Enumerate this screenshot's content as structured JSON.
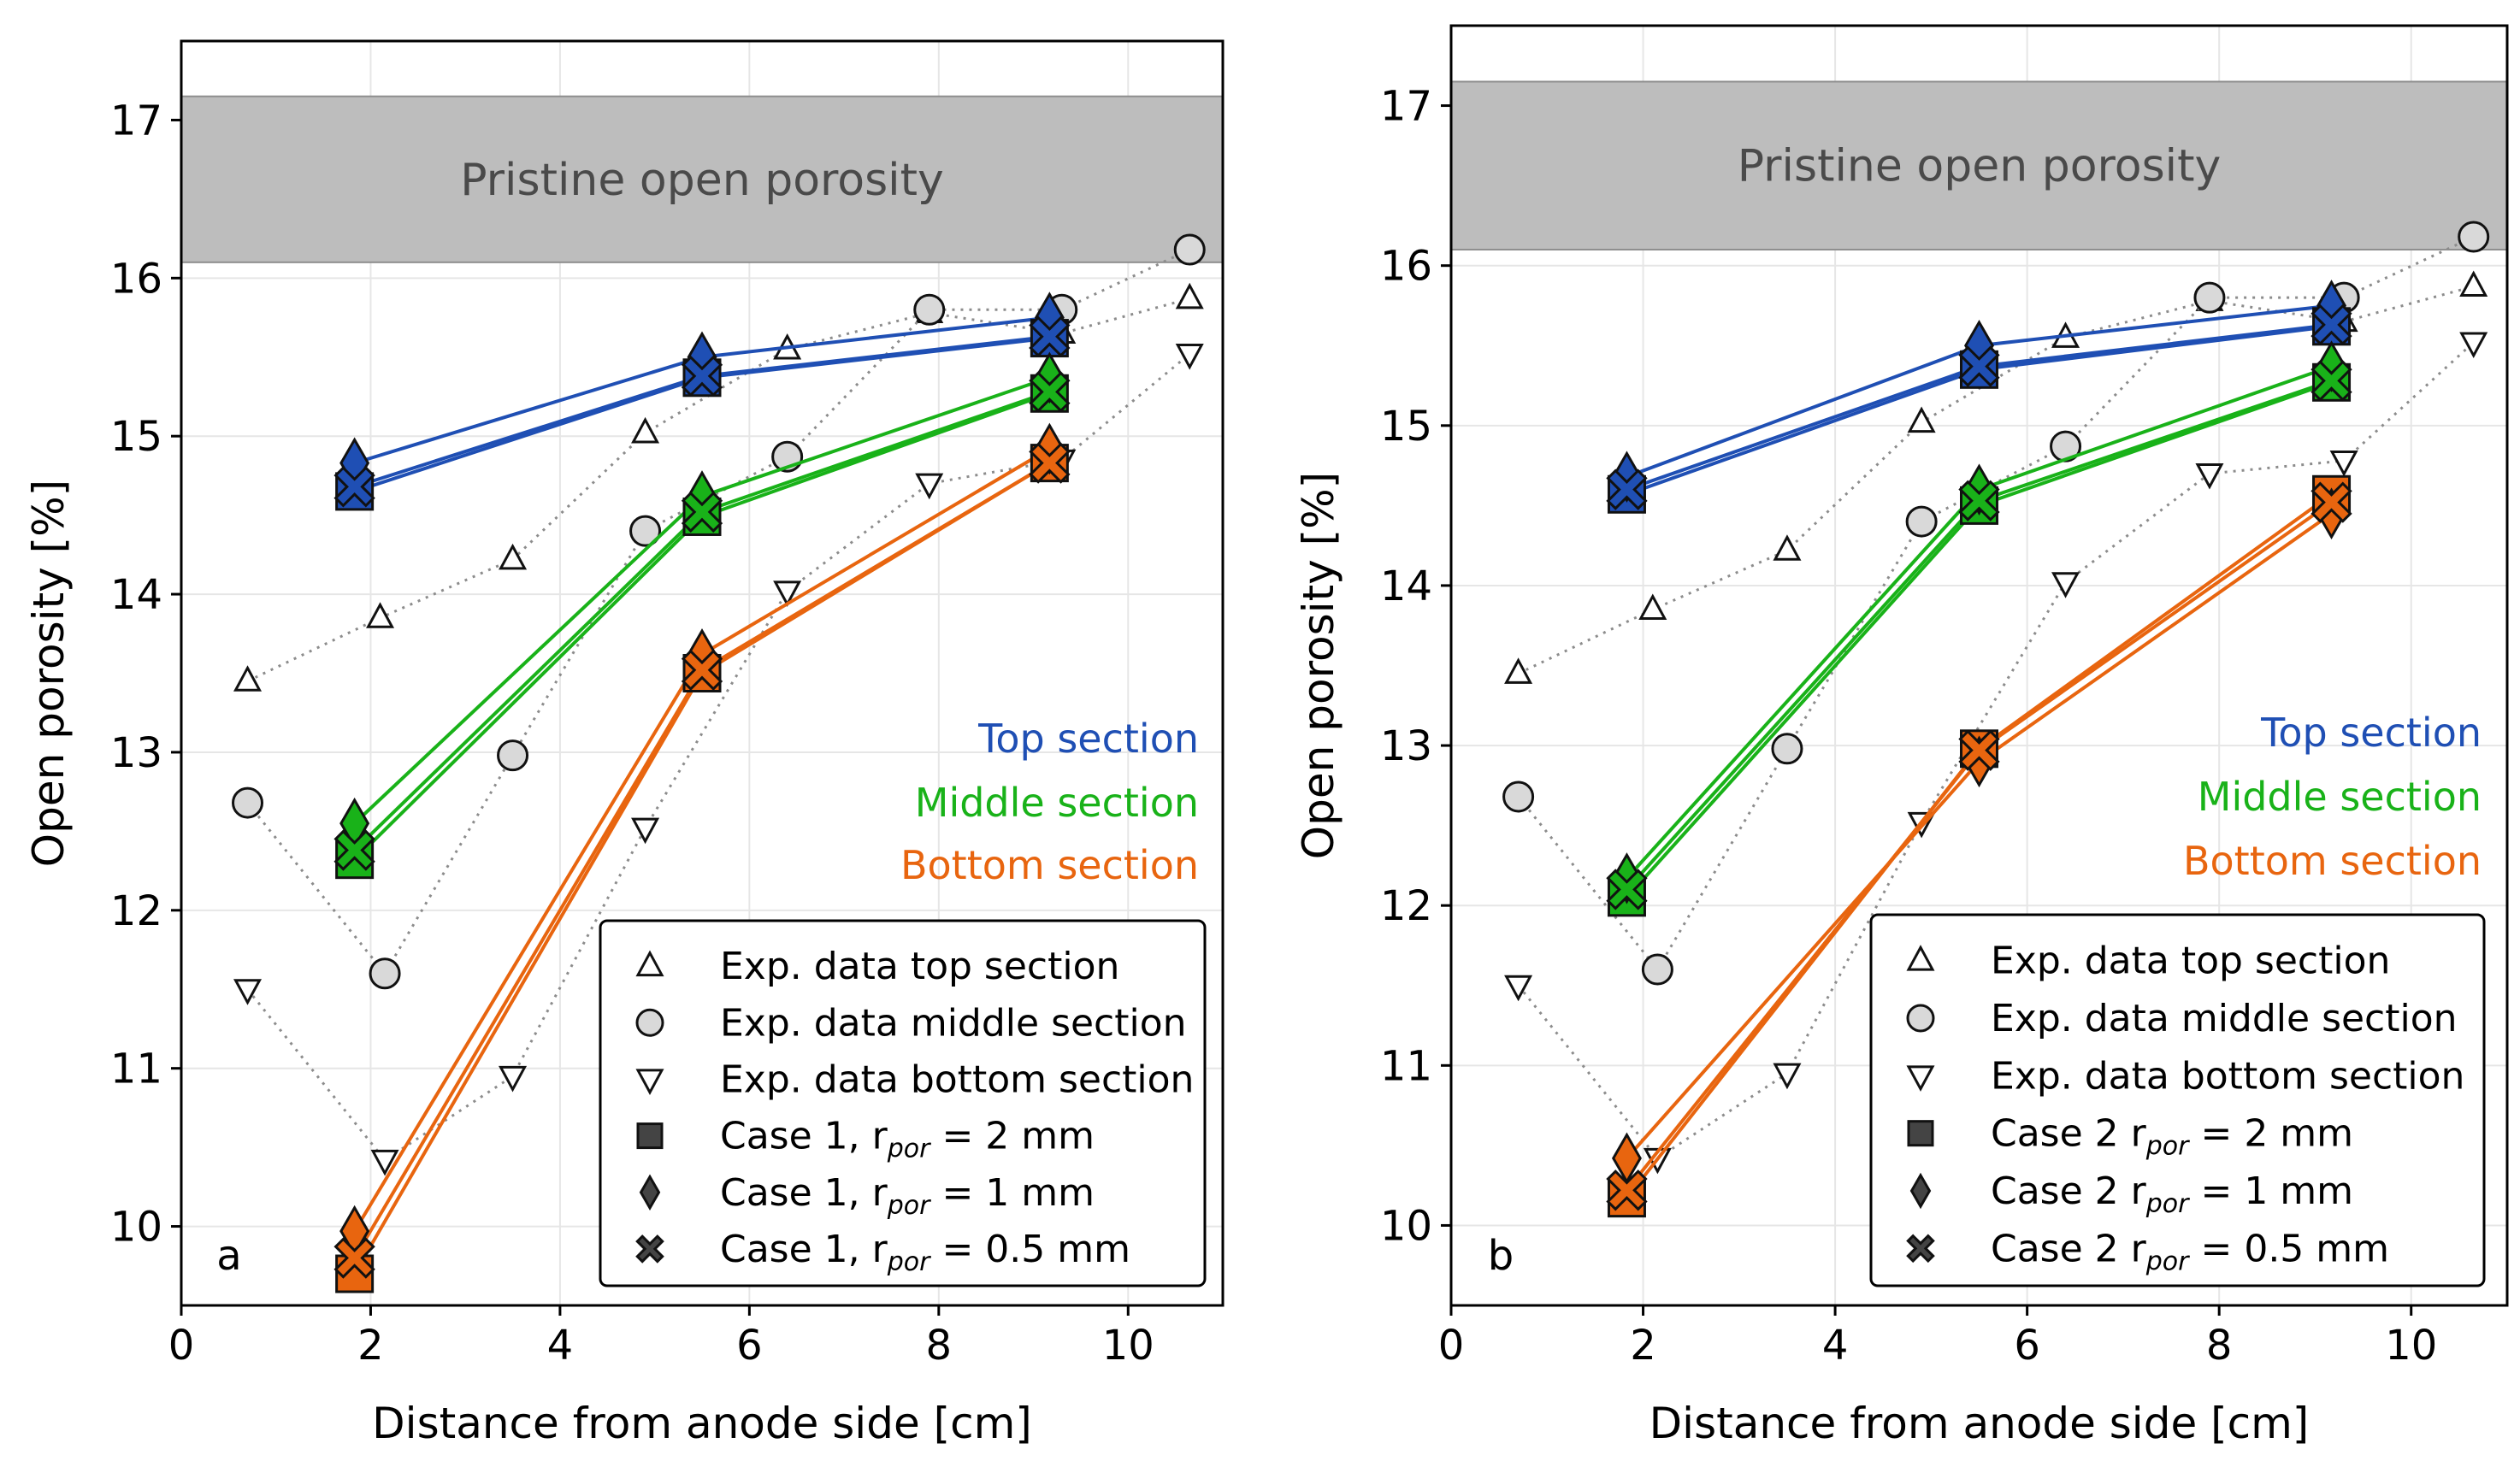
{
  "figure": {
    "ylabel": "Open porosity [%]",
    "xlabel": "Distance from anode side [cm]",
    "band_label": "Pristine open porosity",
    "section_labels": [
      "Top section",
      "Middle section",
      "Bottom section"
    ]
  },
  "colors": {
    "top": "#1f4fb4",
    "middle": "#19b219",
    "bottom": "#e8650f",
    "exp_fill": "#d9d9d9",
    "band": "#bdbdbd",
    "grid": "#e6e6e6"
  },
  "chart_data": [
    {
      "type": "line",
      "panel": "a",
      "xlabel": "Distance from anode side [cm]",
      "ylabel": "Open porosity [%]",
      "xlim": [
        0,
        11
      ],
      "ylim": [
        9.5,
        17.5
      ],
      "xticks": [
        "0",
        "2",
        "4",
        "6",
        "8",
        "10"
      ],
      "yticks": [
        "10",
        "11",
        "12",
        "13",
        "14",
        "15",
        "16",
        "17"
      ],
      "grid": true,
      "band": {
        "label": "Pristine open porosity",
        "y_range": [
          16.1,
          17.15
        ]
      },
      "section_labels": [
        "Top section",
        "Middle section",
        "Bottom section"
      ],
      "legend_position": "lower-right",
      "legend": [
        {
          "symbol": "triangle-up",
          "label": "Exp. data top section"
        },
        {
          "symbol": "circle",
          "label": "Exp. data middle section"
        },
        {
          "symbol": "triangle-down",
          "label": "Exp. data bottom section"
        },
        {
          "symbol": "square",
          "label": "Case 1, r",
          "sub": "por",
          "suffix": " = 2 mm"
        },
        {
          "symbol": "diamond",
          "label": "Case 1, r",
          "sub": "por",
          "suffix": " = 1 mm"
        },
        {
          "symbol": "x",
          "label": "Case 1, r",
          "sub": "por",
          "suffix": " = 0.5 mm"
        }
      ],
      "experimental": [
        {
          "name": "Exp. data top section",
          "marker": "triangle-up",
          "x": [
            0.7,
            2.1,
            3.5,
            4.9,
            6.4,
            7.9,
            9.3,
            10.65
          ],
          "y": [
            13.45,
            13.85,
            14.22,
            15.02,
            15.55,
            15.78,
            15.65,
            15.87
          ]
        },
        {
          "name": "Exp. data middle section",
          "marker": "circle",
          "x": [
            0.7,
            2.15,
            3.5,
            4.9,
            6.4,
            7.9,
            9.3,
            10.65
          ],
          "y": [
            12.68,
            11.6,
            12.98,
            14.4,
            14.87,
            15.8,
            15.8,
            16.18
          ]
        },
        {
          "name": "Exp. data bottom section",
          "marker": "triangle-down",
          "x": [
            0.7,
            2.15,
            3.5,
            4.9,
            6.4,
            7.9,
            9.3,
            10.65
          ],
          "y": [
            11.5,
            10.42,
            10.95,
            12.52,
            14.02,
            14.7,
            14.85,
            15.52
          ]
        }
      ],
      "model": [
        {
          "section": "top",
          "marker": "square",
          "x": [
            1.83,
            5.5,
            9.17
          ],
          "y": [
            14.65,
            15.37,
            15.62
          ]
        },
        {
          "section": "top",
          "marker": "diamond",
          "x": [
            1.83,
            5.5,
            9.17
          ],
          "y": [
            14.83,
            15.5,
            15.75
          ]
        },
        {
          "section": "top",
          "marker": "x",
          "x": [
            1.83,
            5.5,
            9.17
          ],
          "y": [
            14.68,
            15.38,
            15.63
          ]
        },
        {
          "section": "middle",
          "marker": "square",
          "x": [
            1.83,
            5.5,
            9.17
          ],
          "y": [
            12.32,
            14.49,
            15.27
          ]
        },
        {
          "section": "middle",
          "marker": "diamond",
          "x": [
            1.83,
            5.5,
            9.17
          ],
          "y": [
            12.55,
            14.62,
            15.37
          ]
        },
        {
          "section": "middle",
          "marker": "x",
          "x": [
            1.83,
            5.5,
            9.17
          ],
          "y": [
            12.38,
            14.52,
            15.28
          ]
        },
        {
          "section": "bottom",
          "marker": "square",
          "x": [
            1.83,
            5.5,
            9.17
          ],
          "y": [
            9.7,
            13.5,
            14.83
          ]
        },
        {
          "section": "bottom",
          "marker": "diamond",
          "x": [
            1.83,
            5.5,
            9.17
          ],
          "y": [
            9.97,
            13.62,
            14.92
          ]
        },
        {
          "section": "bottom",
          "marker": "x",
          "x": [
            1.83,
            5.5,
            9.17
          ],
          "y": [
            9.8,
            13.52,
            14.83
          ]
        }
      ]
    },
    {
      "type": "line",
      "panel": "b",
      "xlabel": "Distance from anode side [cm]",
      "ylabel": "Open porosity [%]",
      "xlim": [
        0,
        11
      ],
      "ylim": [
        9.5,
        17.5
      ],
      "xticks": [
        "0",
        "2",
        "4",
        "6",
        "8",
        "10"
      ],
      "yticks": [
        "10",
        "11",
        "12",
        "13",
        "14",
        "15",
        "16",
        "17"
      ],
      "grid": true,
      "band": {
        "label": "Pristine open porosity",
        "y_range": [
          16.1,
          17.15
        ]
      },
      "section_labels": [
        "Top section",
        "Middle section",
        "Bottom section"
      ],
      "legend_position": "lower-right",
      "legend": [
        {
          "symbol": "triangle-up",
          "label": "Exp. data top section"
        },
        {
          "symbol": "circle",
          "label": "Exp. data middle section"
        },
        {
          "symbol": "triangle-down",
          "label": "Exp. data bottom section"
        },
        {
          "symbol": "square",
          "label": "Case 2 r",
          "sub": "por",
          "suffix": " = 2 mm"
        },
        {
          "symbol": "diamond",
          "label": "Case 2 r",
          "sub": "por",
          "suffix": " = 1 mm"
        },
        {
          "symbol": "x",
          "label": "Case 2 r",
          "sub": "por",
          "suffix": " = 0.5 mm"
        }
      ],
      "experimental": [
        {
          "name": "Exp. data top section",
          "marker": "triangle-up",
          "x": [
            0.7,
            2.1,
            3.5,
            4.9,
            6.4,
            7.9,
            9.3,
            10.65
          ],
          "y": [
            13.45,
            13.85,
            14.22,
            15.02,
            15.55,
            15.78,
            15.65,
            15.87
          ]
        },
        {
          "name": "Exp. data middle section",
          "marker": "circle",
          "x": [
            0.7,
            2.15,
            3.5,
            4.9,
            6.4,
            7.9,
            9.3,
            10.65
          ],
          "y": [
            12.68,
            11.6,
            12.98,
            14.4,
            14.87,
            15.8,
            15.8,
            16.18
          ]
        },
        {
          "name": "Exp. data bottom section",
          "marker": "triangle-down",
          "x": [
            0.7,
            2.15,
            3.5,
            4.9,
            6.4,
            7.9,
            9.3,
            10.65
          ],
          "y": [
            11.5,
            10.42,
            10.95,
            12.52,
            14.02,
            14.7,
            14.78,
            15.52
          ]
        }
      ],
      "model": [
        {
          "section": "top",
          "marker": "square",
          "x": [
            1.83,
            5.5,
            9.17
          ],
          "y": [
            14.57,
            15.35,
            15.62
          ]
        },
        {
          "section": "top",
          "marker": "diamond",
          "x": [
            1.83,
            5.5,
            9.17
          ],
          "y": [
            14.68,
            15.5,
            15.75
          ]
        },
        {
          "section": "top",
          "marker": "x",
          "x": [
            1.83,
            5.5,
            9.17
          ],
          "y": [
            14.6,
            15.37,
            15.63
          ]
        },
        {
          "section": "middle",
          "marker": "square",
          "x": [
            1.83,
            5.5,
            9.17
          ],
          "y": [
            12.05,
            14.5,
            15.27
          ]
        },
        {
          "section": "middle",
          "marker": "diamond",
          "x": [
            1.83,
            5.5,
            9.17
          ],
          "y": [
            12.17,
            14.6,
            15.37
          ]
        },
        {
          "section": "middle",
          "marker": "x",
          "x": [
            1.83,
            5.5,
            9.17
          ],
          "y": [
            12.1,
            14.53,
            15.28
          ]
        },
        {
          "section": "bottom",
          "marker": "square",
          "x": [
            1.83,
            5.5,
            9.17
          ],
          "y": [
            10.17,
            12.98,
            14.57
          ]
        },
        {
          "section": "bottom",
          "marker": "diamond",
          "x": [
            1.83,
            5.5,
            9.17
          ],
          "y": [
            10.42,
            12.9,
            14.45
          ]
        },
        {
          "section": "bottom",
          "marker": "x",
          "x": [
            1.83,
            5.5,
            9.17
          ],
          "y": [
            10.22,
            12.97,
            14.52
          ]
        }
      ]
    }
  ]
}
